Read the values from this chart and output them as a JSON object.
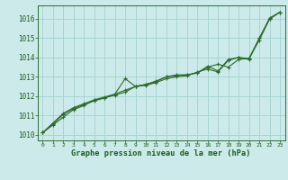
{
  "title": "Graphe pression niveau de la mer (hPa)",
  "background_color": "#cdeaea",
  "line_color": "#2d6b2d",
  "grid_color": "#a8d4d4",
  "text_color": "#1a5c1a",
  "xlim": [
    -0.5,
    23.5
  ],
  "ylim": [
    1009.7,
    1016.7
  ],
  "yticks": [
    1010,
    1011,
    1012,
    1013,
    1014,
    1015,
    1016
  ],
  "xticks": [
    0,
    1,
    2,
    3,
    4,
    5,
    6,
    7,
    8,
    9,
    10,
    11,
    12,
    13,
    14,
    15,
    16,
    17,
    18,
    19,
    20,
    21,
    22,
    23
  ],
  "series": [
    [
      1010.1,
      1010.5,
      1010.9,
      1011.3,
      1011.5,
      1011.8,
      1011.9,
      1012.05,
      1012.2,
      1012.5,
      1012.55,
      1012.7,
      1012.9,
      1013.0,
      1013.05,
      1013.25,
      1013.4,
      1013.25,
      1013.85,
      1014.0,
      1013.9,
      1015.0,
      1016.05,
      1016.35
    ],
    [
      1010.1,
      1010.55,
      1011.05,
      1011.35,
      1011.55,
      1011.75,
      1011.9,
      1012.1,
      1012.9,
      1012.5,
      1012.6,
      1012.75,
      1013.0,
      1013.1,
      1013.1,
      1013.2,
      1013.5,
      1013.65,
      1013.5,
      1013.9,
      1013.95,
      1014.9,
      1016.0,
      1016.35
    ],
    [
      1010.1,
      1010.6,
      1011.1,
      1011.4,
      1011.6,
      1011.8,
      1011.95,
      1012.1,
      1012.3,
      1012.5,
      1012.6,
      1012.78,
      1013.0,
      1013.05,
      1013.1,
      1013.2,
      1013.55,
      1013.3,
      1013.9,
      1014.0,
      1013.95,
      1015.0,
      1016.0,
      1016.35
    ]
  ]
}
